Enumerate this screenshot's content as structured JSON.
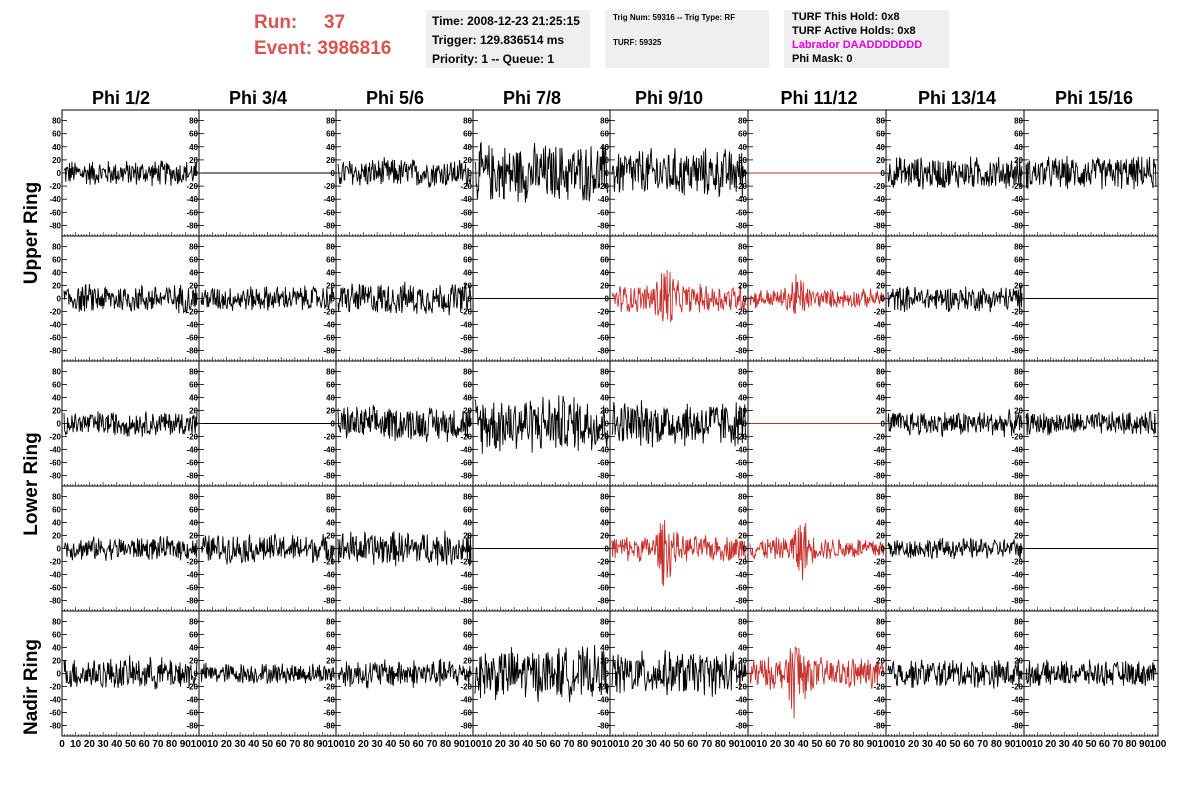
{
  "header": {
    "run_label": "Run:",
    "run_value": "37",
    "event_label": "Event:",
    "event_value": "3986816",
    "time": "Time: 2008-12-23 21:25:15",
    "trigger": "Trigger: 129.836514 ms",
    "priority": "Priority: 1 -- Queue: 1",
    "trig_num": "Trig Num: 59316 -- Trig Type: RF",
    "turf": "TURF: 59325",
    "turf_this_hold": "TURF This Hold: 0x8",
    "turf_active_holds": "TURF Active Holds: 0x8",
    "labrador": "Labrador DAADDDDDDD",
    "phi_mask": "Phi Mask: 0"
  },
  "columns": [
    "Phi 1/2",
    "Phi 3/4",
    "Phi 5/6",
    "Phi 7/8",
    "Phi 9/10",
    "Phi 11/12",
    "Phi 13/14",
    "Phi 15/16"
  ],
  "row_labels": {
    "upper": "Upper Ring",
    "lower": "Lower Ring",
    "nadir": "Nadir Ring"
  },
  "colors": {
    "trace": "#000000",
    "triggered_trace": "#c8302c",
    "run_text": "#d9534f",
    "labrador_text": "#e600e6",
    "info_bg": "#efefef"
  },
  "chart_data": {
    "type": "line",
    "title": "",
    "xlim": [
      0,
      100
    ],
    "ylim": [
      -90,
      90
    ],
    "y_ticks": [
      -80,
      -60,
      -40,
      -20,
      0,
      20,
      40,
      60,
      80
    ],
    "x_tick_labels": [
      "0",
      "10",
      "20",
      "30",
      "40",
      "50",
      "60",
      "70",
      "80",
      "90",
      "100"
    ],
    "panel_rows": 5,
    "panel_cols": 8,
    "panels": [
      [
        {
          "amp": 22,
          "color": "black"
        },
        {
          "amp": 0,
          "color": "black"
        },
        {
          "amp": 25,
          "color": "black"
        },
        {
          "amp": 50,
          "color": "black"
        },
        {
          "amp": 42,
          "color": "black"
        },
        {
          "amp": 0,
          "color": "red"
        },
        {
          "amp": 28,
          "color": "black"
        },
        {
          "amp": 28,
          "color": "black"
        }
      ],
      [
        {
          "amp": 25,
          "color": "black"
        },
        {
          "amp": 22,
          "color": "black"
        },
        {
          "amp": 28,
          "color": "black"
        },
        {
          "amp": 0,
          "color": "black"
        },
        {
          "amp": 45,
          "color": "red",
          "burst": 40
        },
        {
          "amp": 30,
          "color": "red",
          "burst": 35
        },
        {
          "amp": 22,
          "color": "black"
        },
        {
          "amp": 0,
          "color": "black"
        }
      ],
      [
        {
          "amp": 22,
          "color": "black"
        },
        {
          "amp": 0,
          "color": "black"
        },
        {
          "amp": 30,
          "color": "black"
        },
        {
          "amp": 50,
          "color": "black"
        },
        {
          "amp": 40,
          "color": "black"
        },
        {
          "amp": 0,
          "color": "red"
        },
        {
          "amp": 22,
          "color": "black"
        },
        {
          "amp": 20,
          "color": "black"
        }
      ],
      [
        {
          "amp": 20,
          "color": "black"
        },
        {
          "amp": 25,
          "color": "black"
        },
        {
          "amp": 30,
          "color": "black"
        },
        {
          "amp": 0,
          "color": "black"
        },
        {
          "amp": 40,
          "color": "red",
          "burst": 40
        },
        {
          "amp": 35,
          "color": "red",
          "burst": 38
        },
        {
          "amp": 18,
          "color": "black"
        },
        {
          "amp": 0,
          "color": "black"
        }
      ],
      [
        {
          "amp": 28,
          "color": "black"
        },
        {
          "amp": 18,
          "color": "black"
        },
        {
          "amp": 25,
          "color": "black"
        },
        {
          "amp": 45,
          "color": "black"
        },
        {
          "amp": 38,
          "color": "black"
        },
        {
          "amp": 50,
          "color": "red",
          "burst": 35
        },
        {
          "amp": 25,
          "color": "black"
        },
        {
          "amp": 22,
          "color": "black"
        }
      ]
    ]
  }
}
